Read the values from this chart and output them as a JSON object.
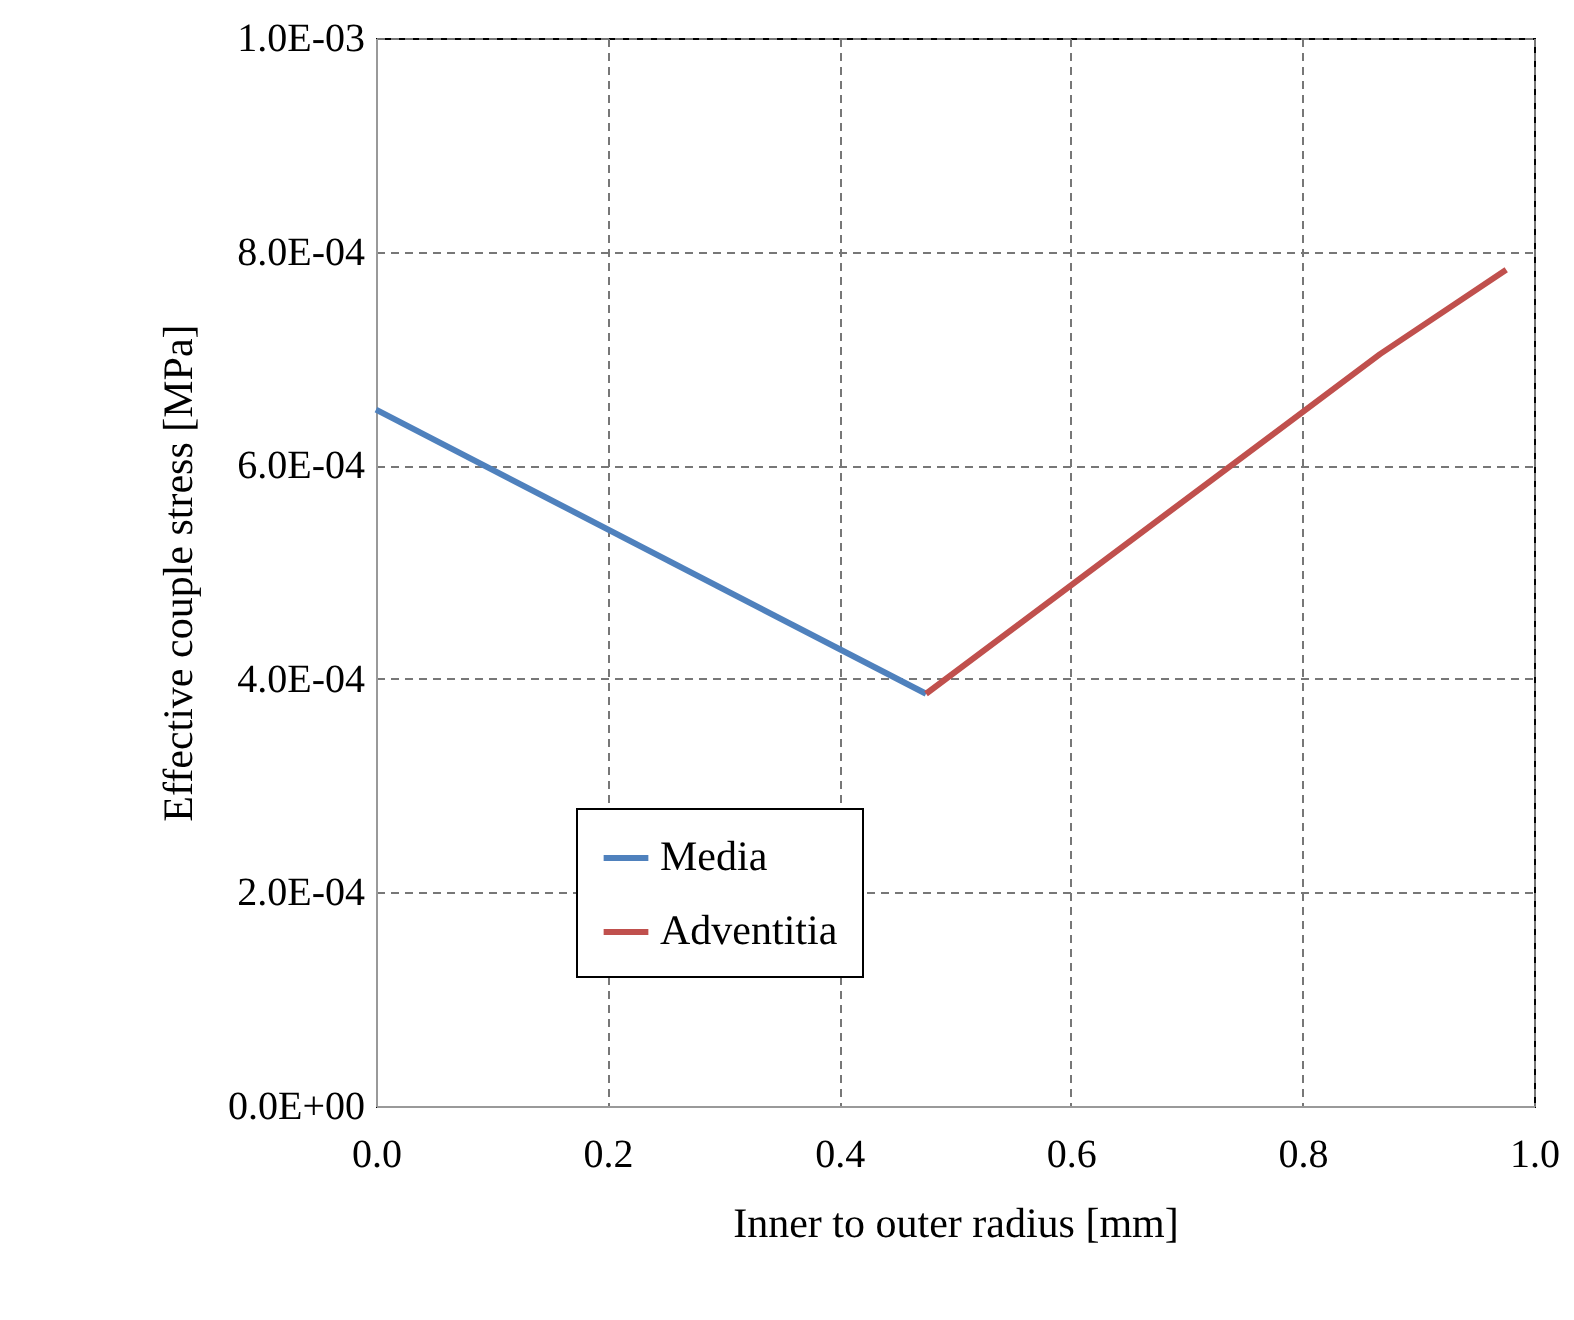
{
  "chart_data": {
    "type": "line",
    "xlabel": "Inner to outer radius [mm]",
    "ylabel": "Effective couple stress [MPa]",
    "series": [
      {
        "name": "Media",
        "color": "#4f81bd",
        "x": [
          0,
          0.475
        ],
        "values": [
          0.000652,
          0.000386
        ]
      },
      {
        "name": "Adventitia",
        "color": "#c0504d",
        "x": [
          0.475,
          0.867,
          0.976
        ],
        "values": [
          0.000386,
          0.000704,
          0.000783
        ]
      }
    ],
    "xlim": [
      0,
      1
    ],
    "xticks": [
      {
        "value": 0,
        "label": "0.0"
      },
      {
        "value": 0.2,
        "label": "0.2"
      },
      {
        "value": 0.4,
        "label": "0.4"
      },
      {
        "value": 0.6,
        "label": "0.6"
      },
      {
        "value": 0.8,
        "label": "0.8"
      },
      {
        "value": 1,
        "label": "1.0"
      }
    ],
    "ylim": [
      0,
      0.001
    ],
    "yticks": [
      {
        "value": 0,
        "label": "0.0E+00"
      },
      {
        "value": 0.0002,
        "label": "2.0E-04"
      },
      {
        "value": 0.0004,
        "label": "4.0E-04"
      },
      {
        "value": 0.0006,
        "label": "6.0E-04"
      },
      {
        "value": 0.0008,
        "label": "8.0E-04"
      },
      {
        "value": 0.001,
        "label": "1.0E-03"
      }
    ],
    "grid": true,
    "legend": "bottom left",
    "marker": "none",
    "line_style": "solid"
  }
}
